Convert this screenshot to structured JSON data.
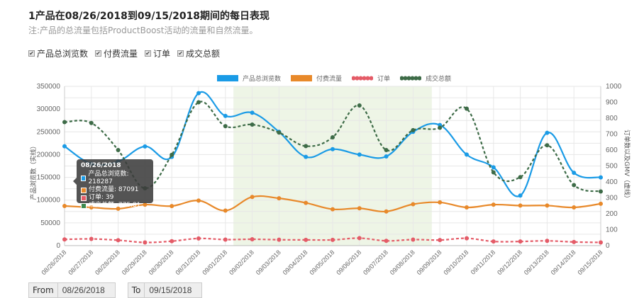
{
  "header": {
    "title": "1产品在08/26/2018到09/15/2018期间的每日表现",
    "note": "注:产品的总流量包括ProductBoost活动的流量和自然流量。"
  },
  "toggles": [
    {
      "label": "产品总浏览数",
      "checked": true
    },
    {
      "label": "付费流量",
      "checked": true
    },
    {
      "label": "订单",
      "checked": true
    },
    {
      "label": "成交总额",
      "checked": true
    }
  ],
  "legend": [
    {
      "label": "产品总浏览数",
      "color": "#1a9be6",
      "style": "solid"
    },
    {
      "label": "付费流量",
      "color": "#e8892a",
      "style": "solid"
    },
    {
      "label": "订单",
      "color": "#e45b67",
      "style": "dashed"
    },
    {
      "label": "成交总额",
      "color": "#3d6b47",
      "style": "dashed"
    }
  ],
  "tooltip": {
    "date": "08/26/2018",
    "rows": [
      {
        "label": "产品总浏览数: 218287",
        "color": "#1a9be6"
      },
      {
        "label": "付费流量: 87091",
        "color": "#e8892a"
      },
      {
        "label": "订单: 39",
        "color": "#e45b67"
      },
      {
        "label": "成交总额: 775.81",
        "color": "#3d8a4f"
      }
    ]
  },
  "date_range": {
    "from_label": "From",
    "from_value": "08/26/2018",
    "to_label": "To",
    "to_value": "09/15/2018"
  },
  "chart_data": {
    "type": "line",
    "title": "1产品在08/26/2018到09/15/2018期间的每日表现",
    "x": [
      "08/26/2018",
      "08/27/2018",
      "08/28/2018",
      "08/29/2018",
      "08/30/2018",
      "08/31/2018",
      "09/01/2018",
      "09/02/2018",
      "09/03/2018",
      "09/04/2018",
      "09/05/2018",
      "09/06/2018",
      "09/07/2018",
      "09/08/2018",
      "09/09/2018",
      "09/10/2018",
      "09/11/2018",
      "09/12/2018",
      "09/13/2018",
      "09/14/2018",
      "09/15/2018"
    ],
    "ylabel": "产品浏览数（实线）",
    "y2label": "订单数以及GMV（虚线）",
    "ylim": [
      0,
      350000
    ],
    "y2lim": [
      0,
      1000
    ],
    "yticks": [
      0,
      50000,
      100000,
      150000,
      200000,
      250000,
      300000,
      350000
    ],
    "y2ticks": [
      0,
      100,
      200,
      300,
      400,
      500,
      600,
      700,
      800,
      900,
      1000
    ],
    "grid": true,
    "legend_position": "top",
    "highlight_range": [
      "09/01/2018",
      "09/09/2018"
    ],
    "series": [
      {
        "name": "产品总浏览数",
        "axis": "left",
        "style": "solid",
        "color": "#1a9be6",
        "values": [
          218287,
          180000,
          185000,
          218000,
          195000,
          335000,
          285000,
          292000,
          250000,
          195000,
          212000,
          200000,
          196000,
          250000,
          265000,
          200000,
          172000,
          110000,
          248000,
          160000,
          150000
        ]
      },
      {
        "name": "付费流量",
        "axis": "left",
        "style": "solid",
        "color": "#e8892a",
        "values": [
          87091,
          84000,
          81000,
          90000,
          87000,
          99000,
          77000,
          107000,
          104000,
          94000,
          80000,
          82000,
          75000,
          91000,
          95000,
          84000,
          90000,
          88000,
          88000,
          84000,
          92000
        ]
      },
      {
        "name": "订单",
        "axis": "right",
        "style": "dashed",
        "color": "#e45b67",
        "values": [
          39,
          42,
          34,
          20,
          28,
          45,
          38,
          40,
          37,
          36,
          36,
          47,
          30,
          38,
          35,
          46,
          26,
          26,
          30,
          23,
          20
        ]
      },
      {
        "name": "成交总额",
        "axis": "right",
        "style": "dashed",
        "color": "#3d6b47",
        "values": [
          775.81,
          770,
          600,
          360,
          570,
          900,
          750,
          760,
          710,
          625,
          680,
          880,
          600,
          725,
          740,
          860,
          460,
          430,
          630,
          380,
          340
        ]
      }
    ]
  }
}
